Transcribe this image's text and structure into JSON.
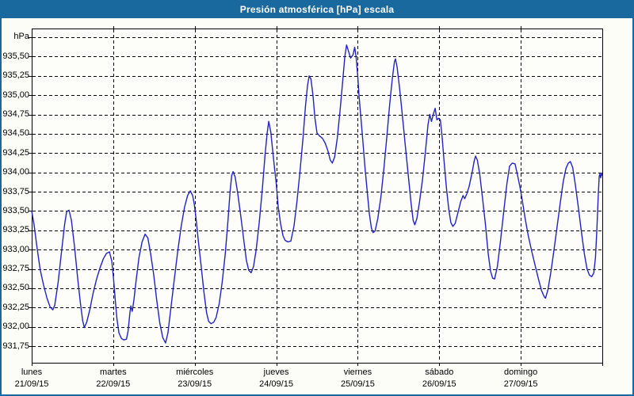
{
  "window": {
    "title": "Presión atmosférica [hPa] escala"
  },
  "colors": {
    "frame_blue": "#1a699e",
    "background": "#fcfdf7",
    "plot_background": "#fdfdfa",
    "grid": "#000000",
    "text": "#000000",
    "series_line": "#2222c4"
  },
  "chart_data": {
    "type": "line",
    "title": "Presión atmosférica [hPa] escala",
    "ylabel": "hPa",
    "legend": "none",
    "grid_style": "dashed",
    "y_axis": {
      "unit": "hPa",
      "top_gridline_value": 935.75,
      "bottom_gridline_value": 931.75,
      "step": 0.25,
      "tick_labels": [
        "935,50",
        "935,25",
        "935,00",
        "934,75",
        "934,50",
        "934,25",
        "934,00",
        "933,75",
        "933,50",
        "933,25",
        "933,00",
        "932,75",
        "932,50",
        "932,25",
        "932,00",
        "931,75"
      ],
      "tick_values": [
        935.5,
        935.25,
        935.0,
        934.75,
        934.5,
        934.25,
        934.0,
        933.75,
        933.5,
        933.25,
        933.0,
        932.75,
        932.5,
        932.25,
        932.0,
        931.75
      ]
    },
    "x_axis": {
      "hours_total": 168,
      "gridline_every_hours": 24,
      "days": [
        {
          "name": "lunes",
          "date": "21/09/15"
        },
        {
          "name": "martes",
          "date": "22/09/15"
        },
        {
          "name": "miércoles",
          "date": "23/09/15"
        },
        {
          "name": "jueves",
          "date": "24/09/15"
        },
        {
          "name": "viernes",
          "date": "25/09/15"
        },
        {
          "name": "sábado",
          "date": "26/09/15"
        },
        {
          "name": "domingo",
          "date": "27/09/15"
        }
      ]
    },
    "series": [
      {
        "name": "Presión atmosférica",
        "color": "#2222c4",
        "points": [
          [
            0.0,
            933.5
          ],
          [
            0.7,
            933.32
          ],
          [
            1.5,
            933.05
          ],
          [
            2.5,
            932.74
          ],
          [
            3.5,
            932.54
          ],
          [
            4.5,
            932.37
          ],
          [
            5.4,
            932.26
          ],
          [
            6.2,
            932.22
          ],
          [
            6.8,
            932.28
          ],
          [
            7.8,
            932.58
          ],
          [
            8.8,
            932.98
          ],
          [
            9.7,
            933.33
          ],
          [
            10.3,
            933.49
          ],
          [
            11.0,
            933.51
          ],
          [
            11.7,
            933.38
          ],
          [
            12.6,
            933.04
          ],
          [
            13.5,
            932.64
          ],
          [
            14.3,
            932.32
          ],
          [
            15.0,
            932.08
          ],
          [
            15.5,
            931.99
          ],
          [
            16.2,
            932.06
          ],
          [
            17.1,
            932.22
          ],
          [
            18.1,
            932.44
          ],
          [
            19.1,
            932.62
          ],
          [
            20.1,
            932.76
          ],
          [
            21.1,
            932.88
          ],
          [
            22.0,
            932.95
          ],
          [
            22.9,
            932.97
          ],
          [
            23.6,
            932.85
          ],
          [
            24.1,
            932.62
          ],
          [
            24.6,
            932.35
          ],
          [
            25.1,
            932.1
          ],
          [
            25.7,
            931.92
          ],
          [
            26.4,
            931.85
          ],
          [
            27.1,
            931.83
          ],
          [
            27.9,
            931.84
          ],
          [
            28.4,
            931.95
          ],
          [
            28.9,
            932.18
          ],
          [
            29.2,
            932.27
          ],
          [
            29.6,
            932.2
          ],
          [
            30.1,
            932.35
          ],
          [
            30.8,
            932.62
          ],
          [
            31.6,
            932.9
          ],
          [
            32.5,
            933.1
          ],
          [
            33.4,
            933.2
          ],
          [
            34.2,
            933.15
          ],
          [
            35.0,
            932.95
          ],
          [
            35.9,
            932.68
          ],
          [
            36.8,
            932.35
          ],
          [
            37.7,
            932.05
          ],
          [
            38.6,
            931.86
          ],
          [
            39.4,
            931.79
          ],
          [
            40.1,
            931.92
          ],
          [
            41.0,
            932.25
          ],
          [
            42.0,
            932.62
          ],
          [
            43.0,
            932.98
          ],
          [
            44.0,
            933.3
          ],
          [
            45.0,
            933.55
          ],
          [
            45.9,
            933.7
          ],
          [
            46.7,
            933.76
          ],
          [
            47.4,
            933.7
          ],
          [
            47.9,
            933.58
          ],
          [
            48.4,
            933.4
          ],
          [
            49.1,
            933.1
          ],
          [
            49.9,
            932.78
          ],
          [
            50.7,
            932.45
          ],
          [
            51.5,
            932.18
          ],
          [
            52.1,
            932.07
          ],
          [
            52.8,
            932.04
          ],
          [
            53.6,
            932.06
          ],
          [
            54.3,
            932.12
          ],
          [
            55.2,
            932.3
          ],
          [
            56.1,
            932.58
          ],
          [
            57.0,
            932.95
          ],
          [
            57.8,
            933.38
          ],
          [
            58.4,
            933.75
          ],
          [
            58.9,
            933.96
          ],
          [
            59.3,
            934.01
          ],
          [
            59.9,
            933.94
          ],
          [
            60.7,
            933.72
          ],
          [
            61.6,
            933.42
          ],
          [
            62.5,
            933.1
          ],
          [
            63.2,
            932.86
          ],
          [
            63.9,
            932.73
          ],
          [
            64.6,
            932.7
          ],
          [
            65.3,
            932.78
          ],
          [
            66.1,
            933.0
          ],
          [
            67.0,
            933.35
          ],
          [
            67.9,
            933.78
          ],
          [
            68.7,
            934.22
          ],
          [
            69.3,
            934.5
          ],
          [
            69.8,
            934.66
          ],
          [
            70.4,
            934.52
          ],
          [
            71.2,
            934.18
          ],
          [
            72.0,
            933.85
          ],
          [
            72.6,
            933.55
          ],
          [
            73.3,
            933.33
          ],
          [
            74.0,
            933.18
          ],
          [
            74.6,
            933.12
          ],
          [
            75.4,
            933.1
          ],
          [
            76.3,
            933.11
          ],
          [
            77.2,
            933.3
          ],
          [
            78.1,
            933.62
          ],
          [
            79.0,
            934.02
          ],
          [
            79.9,
            934.45
          ],
          [
            80.6,
            934.85
          ],
          [
            81.2,
            935.12
          ],
          [
            81.7,
            935.25
          ],
          [
            82.2,
            935.21
          ],
          [
            82.8,
            935.0
          ],
          [
            83.4,
            934.7
          ],
          [
            84.0,
            934.51
          ],
          [
            84.8,
            934.47
          ],
          [
            85.6,
            934.44
          ],
          [
            86.4,
            934.38
          ],
          [
            87.2,
            934.28
          ],
          [
            87.9,
            934.16
          ],
          [
            88.5,
            934.12
          ],
          [
            89.2,
            934.2
          ],
          [
            90.0,
            934.45
          ],
          [
            90.8,
            934.8
          ],
          [
            91.6,
            935.2
          ],
          [
            92.2,
            935.5
          ],
          [
            92.7,
            935.65
          ],
          [
            93.2,
            935.58
          ],
          [
            93.9,
            935.48
          ],
          [
            94.6,
            935.52
          ],
          [
            95.1,
            935.62
          ],
          [
            95.5,
            935.5
          ],
          [
            96.0,
            935.25
          ],
          [
            96.4,
            934.98
          ],
          [
            96.9,
            934.72
          ],
          [
            97.5,
            934.4
          ],
          [
            98.1,
            934.08
          ],
          [
            98.8,
            933.75
          ],
          [
            99.4,
            933.47
          ],
          [
            100.0,
            933.28
          ],
          [
            100.5,
            933.22
          ],
          [
            101.1,
            933.24
          ],
          [
            101.9,
            933.4
          ],
          [
            102.8,
            933.68
          ],
          [
            103.7,
            934.05
          ],
          [
            104.6,
            934.48
          ],
          [
            105.4,
            934.88
          ],
          [
            106.2,
            935.22
          ],
          [
            106.8,
            935.43
          ],
          [
            107.1,
            935.47
          ],
          [
            107.6,
            935.36
          ],
          [
            108.3,
            935.1
          ],
          [
            109.1,
            934.75
          ],
          [
            110.0,
            934.35
          ],
          [
            110.9,
            933.95
          ],
          [
            111.7,
            933.6
          ],
          [
            112.3,
            933.38
          ],
          [
            112.8,
            933.32
          ],
          [
            113.4,
            933.4
          ],
          [
            114.2,
            933.62
          ],
          [
            115.1,
            933.92
          ],
          [
            116.0,
            934.3
          ],
          [
            116.7,
            934.62
          ],
          [
            117.2,
            934.75
          ],
          [
            117.7,
            934.66
          ],
          [
            118.3,
            934.76
          ],
          [
            118.8,
            934.83
          ],
          [
            119.3,
            934.68
          ],
          [
            119.8,
            934.7
          ],
          [
            120.3,
            934.68
          ],
          [
            120.8,
            934.48
          ],
          [
            121.4,
            934.15
          ],
          [
            122.1,
            933.8
          ],
          [
            122.8,
            933.52
          ],
          [
            123.4,
            933.35
          ],
          [
            124.0,
            933.3
          ],
          [
            124.7,
            933.34
          ],
          [
            125.5,
            933.48
          ],
          [
            126.3,
            933.62
          ],
          [
            127.0,
            933.7
          ],
          [
            127.5,
            933.66
          ],
          [
            128.1,
            933.72
          ],
          [
            128.8,
            933.82
          ],
          [
            129.6,
            933.98
          ],
          [
            130.3,
            934.15
          ],
          [
            130.7,
            934.21
          ],
          [
            131.2,
            934.16
          ],
          [
            131.9,
            933.98
          ],
          [
            132.7,
            933.68
          ],
          [
            133.6,
            933.32
          ],
          [
            134.4,
            932.95
          ],
          [
            135.1,
            932.72
          ],
          [
            135.7,
            932.63
          ],
          [
            136.3,
            932.62
          ],
          [
            137.1,
            932.78
          ],
          [
            138.0,
            933.1
          ],
          [
            139.0,
            933.5
          ],
          [
            139.9,
            933.85
          ],
          [
            140.7,
            934.08
          ],
          [
            141.5,
            934.12
          ],
          [
            142.3,
            934.11
          ],
          [
            143.1,
            933.95
          ],
          [
            143.8,
            933.8
          ],
          [
            144.5,
            933.62
          ],
          [
            145.3,
            933.4
          ],
          [
            146.2,
            933.18
          ],
          [
            147.2,
            932.98
          ],
          [
            148.2,
            932.8
          ],
          [
            149.2,
            932.62
          ],
          [
            150.1,
            932.47
          ],
          [
            150.9,
            932.39
          ],
          [
            151.3,
            932.37
          ],
          [
            152.0,
            932.48
          ],
          [
            152.9,
            932.72
          ],
          [
            153.8,
            933.0
          ],
          [
            154.7,
            933.3
          ],
          [
            155.6,
            933.6
          ],
          [
            156.5,
            933.88
          ],
          [
            157.3,
            934.05
          ],
          [
            158.0,
            934.12
          ],
          [
            158.6,
            934.14
          ],
          [
            159.3,
            934.06
          ],
          [
            160.0,
            933.86
          ],
          [
            160.9,
            933.56
          ],
          [
            161.8,
            933.25
          ],
          [
            162.7,
            932.95
          ],
          [
            163.5,
            932.75
          ],
          [
            164.2,
            932.67
          ],
          [
            164.9,
            932.65
          ],
          [
            165.5,
            932.7
          ],
          [
            166.0,
            932.9
          ],
          [
            166.4,
            933.25
          ],
          [
            166.8,
            933.7
          ],
          [
            167.1,
            933.95
          ],
          [
            167.3,
            933.98
          ],
          [
            167.5,
            933.93
          ],
          [
            167.8,
            933.99
          ],
          [
            168.0,
            933.96
          ]
        ]
      }
    ]
  }
}
